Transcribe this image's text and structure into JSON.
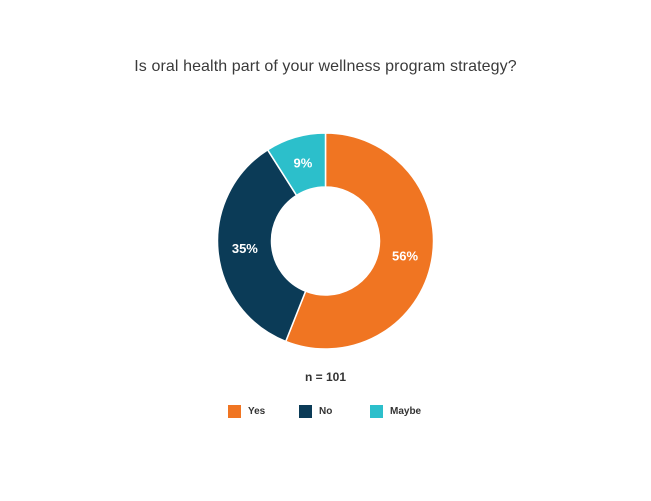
{
  "chart_data": {
    "type": "pie",
    "variant": "donut",
    "title": "Is oral health part of your wellness program strategy?",
    "note": "n = 101",
    "categories": [
      "Yes",
      "No",
      "Maybe"
    ],
    "values": [
      56,
      35,
      9
    ],
    "labels": [
      "56%",
      "35%",
      "9%"
    ],
    "colors": [
      "#F07522",
      "#0B3B57",
      "#2CBFCB"
    ],
    "label_color": "#FFFFFF",
    "legend_position": "bottom"
  }
}
